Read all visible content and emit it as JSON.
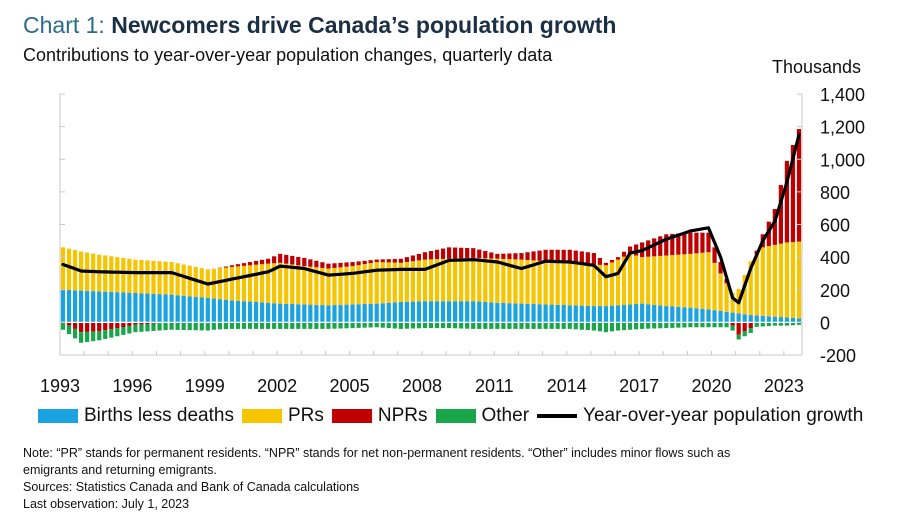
{
  "header": {
    "title_lead": "Chart 1: ",
    "title_main": "Newcomers drive Canada’s population growth",
    "subtitle": "Contributions to year-over-year population changes, quarterly data",
    "unit": "Thousands"
  },
  "notes": [
    "Note: “PR” stands for permanent residents. “NPR” stands for net non-permanent residents. “Other” includes minor flows such as",
    "emigrants and returning emigrants.",
    "Sources: Statistics Canada and Bank of Canada calculations",
    "Last observation: July 1, 2023"
  ],
  "colors": {
    "births": "#1aa3e0",
    "prs": "#f7c400",
    "nprs": "#c00000",
    "other": "#19a64b",
    "growth": "#000000"
  },
  "chart_data": {
    "type": "bar",
    "stacked": true,
    "frequency": "quarterly",
    "title": "Newcomers drive Canada’s population growth",
    "subtitle": "Contributions to year-over-year population changes, quarterly data",
    "ylabel": "Thousands",
    "ylim": [
      -200,
      1400
    ],
    "yticks": [
      "-200",
      "0",
      "200",
      "400",
      "600",
      "800",
      "1,000",
      "1,200",
      "1,400"
    ],
    "ytick_values": [
      -200,
      0,
      200,
      400,
      600,
      800,
      1000,
      1200,
      1400
    ],
    "y_axis_position": "right",
    "xticks": [
      "1993",
      "1996",
      "1999",
      "2002",
      "2005",
      "2008",
      "2011",
      "2014",
      "2017",
      "2020",
      "2023"
    ],
    "grid": false,
    "legend_position": "bottom",
    "legend": [
      "Births less deaths",
      "PRs",
      "NPRs",
      "Other",
      "Year-over-year population growth"
    ],
    "anchors": {
      "x": [
        1993.0,
        1993.75,
        1994.5,
        1996.0,
        1997.5,
        1999.0,
        2000.0,
        2001.5,
        2002.0,
        2003.0,
        2004.0,
        2005.0,
        2006.0,
        2007.0,
        2008.0,
        2009.0,
        2010.0,
        2011.0,
        2012.0,
        2013.0,
        2014.0,
        2015.0,
        2015.5,
        2016.0,
        2016.5,
        2017.0,
        2018.0,
        2019.0,
        2019.75,
        2020.25,
        2020.75,
        2021.0,
        2021.5,
        2022.0,
        2022.5,
        2023.0,
        2023.5
      ],
      "births": [
        200,
        195,
        190,
        180,
        170,
        150,
        135,
        120,
        115,
        110,
        105,
        110,
        115,
        125,
        130,
        130,
        130,
        120,
        115,
        110,
        105,
        100,
        100,
        105,
        110,
        115,
        100,
        90,
        80,
        70,
        60,
        55,
        45,
        40,
        35,
        30,
        25
      ],
      "prs": [
        260,
        240,
        225,
        205,
        200,
        175,
        205,
        240,
        250,
        235,
        225,
        235,
        255,
        240,
        255,
        260,
        265,
        270,
        270,
        265,
        265,
        255,
        250,
        280,
        310,
        285,
        310,
        330,
        350,
        230,
        120,
        150,
        330,
        420,
        440,
        460,
        470
      ],
      "nprs": [
        0,
        -60,
        -55,
        -15,
        0,
        -5,
        10,
        30,
        55,
        50,
        30,
        25,
        15,
        25,
        45,
        70,
        60,
        30,
        40,
        70,
        75,
        70,
        15,
        15,
        45,
        90,
        130,
        130,
        120,
        70,
        -20,
        -75,
        -35,
        80,
        220,
        500,
        690
      ],
      "other": [
        -45,
        -65,
        -55,
        -45,
        -45,
        -45,
        -40,
        -40,
        -40,
        -40,
        -40,
        -35,
        -30,
        -40,
        -35,
        -35,
        -40,
        -40,
        -40,
        -40,
        -40,
        -50,
        -60,
        -50,
        -45,
        -40,
        -35,
        -30,
        -30,
        -30,
        -30,
        -30,
        -30,
        -25,
        -20,
        -20,
        -15
      ],
      "growth": [
        355,
        315,
        310,
        305,
        305,
        235,
        265,
        310,
        345,
        330,
        290,
        300,
        320,
        325,
        325,
        380,
        385,
        370,
        330,
        375,
        370,
        350,
        280,
        300,
        425,
        440,
        510,
        560,
        580,
        400,
        150,
        120,
        330,
        500,
        620,
        860,
        1150
      ]
    }
  }
}
